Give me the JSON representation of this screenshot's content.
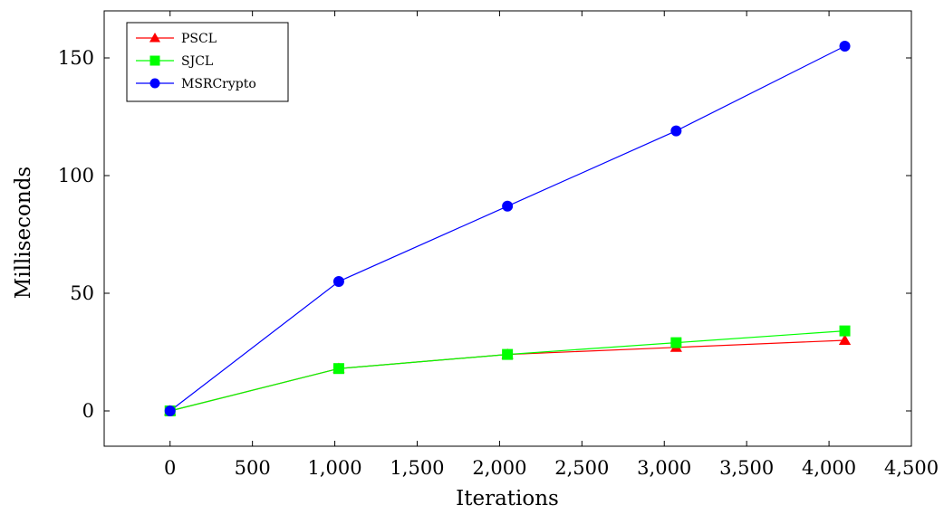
{
  "chart_data": {
    "type": "line",
    "xlabel": "Iterations",
    "ylabel": "Milliseconds",
    "xlim": [
      -400,
      4500
    ],
    "ylim": [
      -15,
      170
    ],
    "x_ticks": [
      0,
      500,
      1000,
      1500,
      2000,
      2500,
      3000,
      3500,
      4000,
      4500
    ],
    "x_tick_labels": [
      "0",
      "500",
      "1,000",
      "1,500",
      "2,000",
      "2,500",
      "3,000",
      "3,500",
      "4,000",
      "4,500"
    ],
    "y_ticks": [
      0,
      50,
      100,
      150
    ],
    "y_tick_labels": [
      "0",
      "50",
      "100",
      "150"
    ],
    "grid": false,
    "legend_position": "top-left",
    "series": [
      {
        "name": "PSCL",
        "color": "#ff0000",
        "marker": "triangle",
        "x": [
          0,
          1024,
          2048,
          3072,
          4096
        ],
        "y": [
          0,
          18,
          24,
          27,
          30
        ]
      },
      {
        "name": "SJCL",
        "color": "#00ff00",
        "marker": "square",
        "x": [
          0,
          1024,
          2048,
          3072,
          4096
        ],
        "y": [
          0,
          18,
          24,
          29,
          34
        ]
      },
      {
        "name": "MSRCrypto",
        "color": "#0000ff",
        "marker": "circle",
        "x": [
          0,
          1024,
          2048,
          3072,
          4096
        ],
        "y": [
          0,
          55,
          87,
          119,
          155
        ]
      }
    ]
  }
}
